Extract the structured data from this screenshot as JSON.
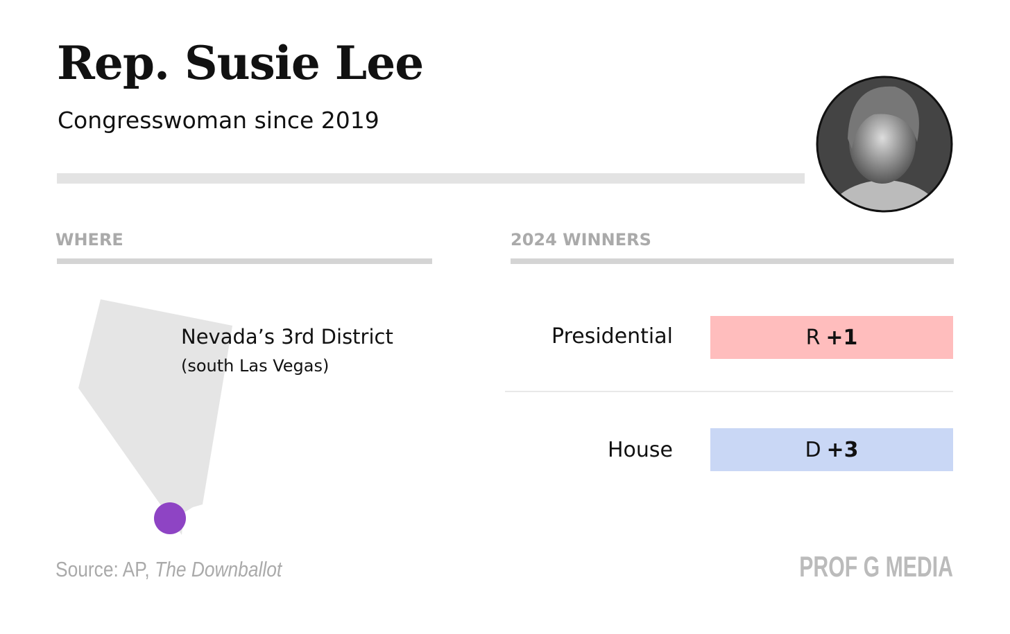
{
  "header": {
    "title": "Rep. Susie Lee",
    "subtitle": "Congresswoman since 2019"
  },
  "where": {
    "heading": "WHERE",
    "district": "Nevada’s 3rd District",
    "area": "(south Las Vegas)"
  },
  "winners": {
    "heading": "2024 WINNERS",
    "rows": [
      {
        "label": "Presidential",
        "party": "R",
        "margin": "+1"
      },
      {
        "label": "House",
        "party": "D",
        "margin": "+3"
      }
    ]
  },
  "footer": {
    "source_prefix": "Source: AP,",
    "source_name": "The Downballot",
    "brand": "PROF G MEDIA"
  }
}
